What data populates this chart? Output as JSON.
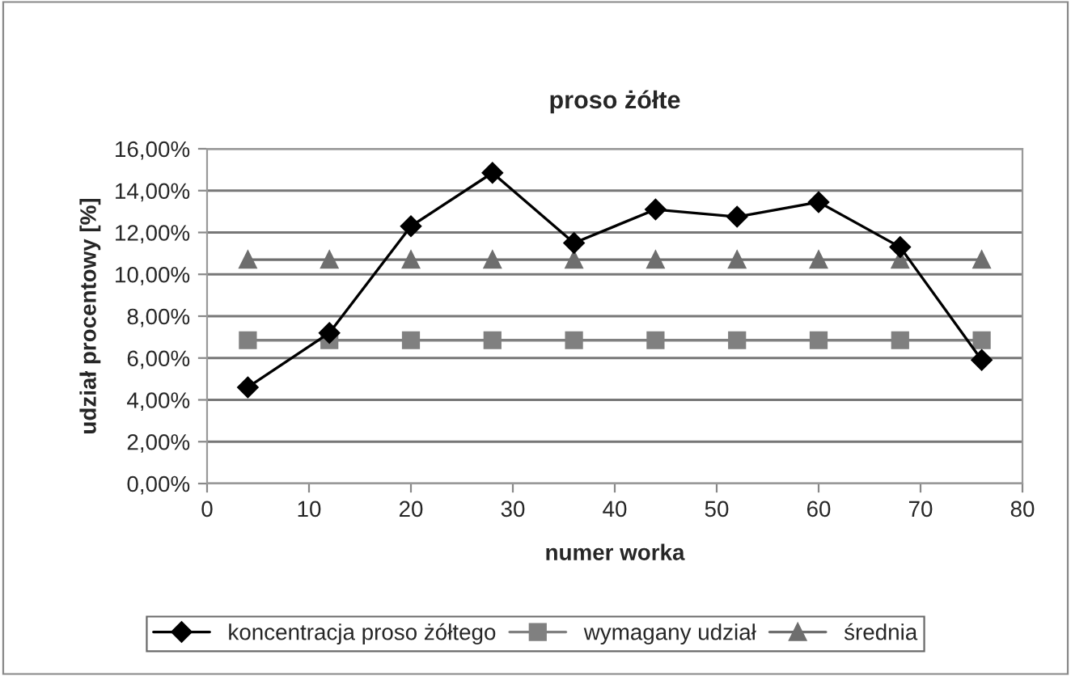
{
  "chart_data": {
    "type": "line",
    "title": "proso żółte",
    "xlabel": "numer worka",
    "ylabel": "udział procentowy [%]",
    "x": [
      4,
      12,
      20,
      28,
      36,
      44,
      52,
      60,
      68,
      76
    ],
    "series": [
      {
        "name": "koncentracja proso żółtego",
        "color": "#000000",
        "marker": "diamond",
        "values": [
          4.6,
          7.2,
          12.3,
          14.85,
          11.5,
          13.1,
          12.75,
          13.45,
          11.3,
          5.9
        ]
      },
      {
        "name": "wymagany udział",
        "color": "#808080",
        "marker": "square",
        "values": [
          6.85,
          6.85,
          6.85,
          6.85,
          6.85,
          6.85,
          6.85,
          6.85,
          6.85,
          6.85
        ]
      },
      {
        "name": "średnia",
        "color": "#6e6e6e",
        "marker": "triangle",
        "values": [
          10.7,
          10.7,
          10.7,
          10.7,
          10.7,
          10.7,
          10.7,
          10.7,
          10.7,
          10.7
        ]
      }
    ],
    "xlim": [
      0,
      80
    ],
    "xticks": [
      0,
      10,
      20,
      30,
      40,
      50,
      60,
      70,
      80
    ],
    "ylim": [
      0,
      16
    ],
    "yticks": [
      {
        "value": 0,
        "label": "0,00%"
      },
      {
        "value": 2,
        "label": "2,00%"
      },
      {
        "value": 4,
        "label": "4,00%"
      },
      {
        "value": 6,
        "label": "6,00%"
      },
      {
        "value": 8,
        "label": "8,00%"
      },
      {
        "value": 10,
        "label": "10,00%"
      },
      {
        "value": 12,
        "label": "12,00%"
      },
      {
        "value": 14,
        "label": "14,00%"
      },
      {
        "value": 16,
        "label": "16,00%"
      }
    ],
    "grid": "y",
    "legend": "bottom",
    "line_style": "solid"
  }
}
